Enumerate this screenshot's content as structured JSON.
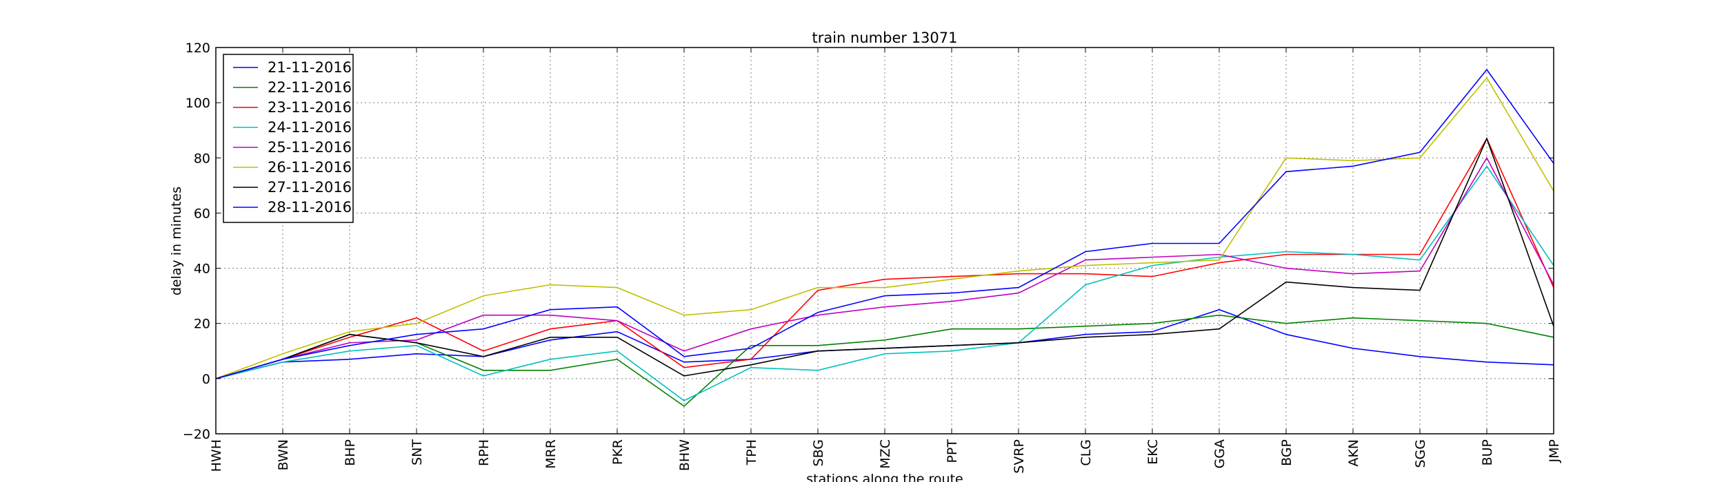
{
  "chart_data": {
    "type": "line",
    "title": "train number 13071",
    "xlabel": "stations along the route",
    "ylabel": "delay in minutes",
    "categories": [
      "HWH",
      "BWN",
      "BHP",
      "SNT",
      "RPH",
      "MRR",
      "PKR",
      "BHW",
      "TPH",
      "SBG",
      "MZC",
      "PPT",
      "SVRP",
      "CLG",
      "EKC",
      "GGA",
      "BGP",
      "AKN",
      "SGG",
      "BUP",
      "JMP"
    ],
    "ylim": [
      -20,
      120
    ],
    "yticks": [
      -20,
      0,
      20,
      40,
      60,
      80,
      100,
      120
    ],
    "grid": true,
    "legend_position": "top-left",
    "series": [
      {
        "name": "21-11-2016",
        "color": "#0000ff",
        "values": [
          0,
          6,
          7,
          9,
          8,
          14,
          17,
          6,
          7,
          10,
          11,
          12,
          13,
          16,
          17,
          25,
          16,
          11,
          8,
          6,
          5
        ]
      },
      {
        "name": "22-11-2016",
        "color": "#008000",
        "values": [
          0,
          7,
          16,
          13,
          3,
          3,
          7,
          -10,
          12,
          12,
          14,
          18,
          18,
          19,
          20,
          23,
          20,
          22,
          21,
          20,
          15
        ]
      },
      {
        "name": "23-11-2016",
        "color": "#ff0000",
        "values": [
          0,
          7,
          15,
          22,
          10,
          18,
          21,
          4,
          7,
          32,
          36,
          37,
          38,
          38,
          37,
          42,
          45,
          45,
          45,
          87,
          33
        ]
      },
      {
        "name": "24-11-2016",
        "color": "#00bfbf",
        "values": [
          0,
          6,
          10,
          12,
          1,
          7,
          10,
          -8,
          4,
          3,
          9,
          10,
          13,
          34,
          41,
          44,
          46,
          45,
          43,
          77,
          41
        ]
      },
      {
        "name": "25-11-2016",
        "color": "#bf00bf",
        "values": [
          0,
          7,
          13,
          14,
          23,
          23,
          21,
          10,
          18,
          23,
          26,
          28,
          31,
          43,
          44,
          45,
          40,
          38,
          39,
          80,
          34
        ]
      },
      {
        "name": "26-11-2016",
        "color": "#bfbf00",
        "values": [
          0,
          9,
          17,
          20,
          30,
          34,
          33,
          23,
          25,
          33,
          33,
          36,
          39,
          41,
          42,
          43,
          80,
          79,
          80,
          109,
          68
        ]
      },
      {
        "name": "27-11-2016",
        "color": "#000000",
        "values": [
          0,
          7,
          16,
          13,
          8,
          15,
          15,
          1,
          5,
          10,
          11,
          12,
          13,
          15,
          16,
          18,
          35,
          33,
          32,
          87,
          19
        ]
      },
      {
        "name": "28-11-2016",
        "color": "#0000ff",
        "values": [
          0,
          7,
          12,
          16,
          18,
          25,
          26,
          8,
          11,
          24,
          30,
          31,
          33,
          46,
          49,
          49,
          75,
          77,
          82,
          112,
          78
        ]
      }
    ]
  }
}
